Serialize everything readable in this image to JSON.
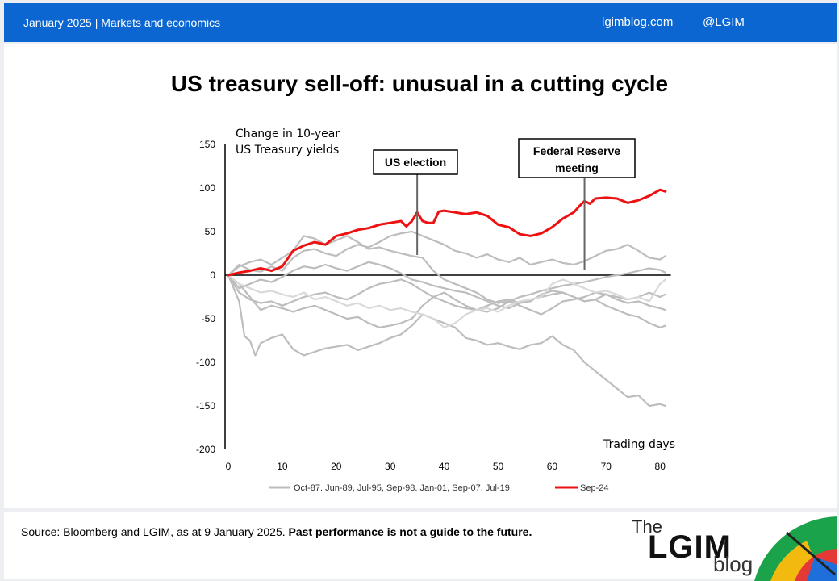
{
  "header": {
    "left": "January 2025 |  Markets and economics",
    "site": "lgimblog.com",
    "handle": "@LGIM"
  },
  "title": "US treasury sell-off: unusual in a cutting cycle",
  "source": {
    "text": "Source: Bloomberg and LGIM,  as at 9 January 2025. ",
    "bold": "Past performance is not a guide to the future."
  },
  "logo": {
    "the": "The",
    "main": "LGIM",
    "blog": "blog"
  },
  "colors": {
    "header": "#0b66d1",
    "highlight": "#ee1111",
    "history": "#bdbdbd",
    "history_light": "#d9d9d9"
  },
  "chart_data": {
    "type": "line",
    "title": "US treasury sell-off: unusual in a cutting cycle",
    "ylabel": [
      "Change in 10-year",
      "US Treasury yields"
    ],
    "xlabel": "Trading days",
    "xlim": [
      0,
      82
    ],
    "ylim": [
      -200,
      150
    ],
    "xticks": [
      0,
      10,
      20,
      30,
      40,
      50,
      60,
      70,
      80
    ],
    "yticks": [
      150,
      100,
      50,
      0,
      -50,
      -100,
      -150,
      -200
    ],
    "grid": false,
    "legend": {
      "placement": "bottom",
      "entries": [
        "Oct-87. Jun-89, Jul-95, Sep-98. Jan-01, Sep-07. Jul-19",
        "Sep-24"
      ]
    },
    "annotations": [
      {
        "text": "US election",
        "x": 35
      },
      {
        "text": "Federal Reserve meeting",
        "x": 66
      }
    ],
    "series": [
      {
        "name": "Sep-24",
        "color": "#ee1111",
        "width": 3,
        "x": [
          0,
          2,
          4,
          6,
          8,
          10,
          12,
          14,
          16,
          18,
          20,
          22,
          24,
          26,
          28,
          30,
          32,
          33,
          34,
          35,
          36,
          37,
          38,
          39,
          40,
          42,
          44,
          46,
          48,
          50,
          52,
          54,
          56,
          58,
          60,
          62,
          64,
          65,
          66,
          67,
          68,
          70,
          72,
          74,
          76,
          78,
          80,
          81
        ],
        "y": [
          0,
          3,
          5,
          8,
          5,
          10,
          28,
          34,
          38,
          35,
          45,
          48,
          52,
          54,
          58,
          60,
          62,
          56,
          62,
          72,
          62,
          60,
          60,
          73,
          74,
          72,
          70,
          72,
          68,
          58,
          55,
          47,
          45,
          48,
          55,
          65,
          72,
          79,
          85,
          82,
          88,
          89,
          88,
          83,
          86,
          91,
          98,
          96
        ]
      },
      {
        "color": "#bdbdbd",
        "width": 2.2,
        "x": [
          0,
          2,
          3,
          4,
          5,
          6,
          8,
          10,
          12,
          14,
          16,
          18,
          20,
          22,
          24,
          26,
          28,
          30,
          32,
          34,
          36,
          38,
          40,
          42,
          44,
          46,
          48,
          50,
          52,
          54,
          56,
          58,
          60,
          62,
          64,
          66,
          68,
          70,
          72,
          74,
          76,
          78,
          80,
          81
        ],
        "y": [
          0,
          -30,
          -70,
          -75,
          -92,
          -78,
          -72,
          -68,
          -85,
          -92,
          -88,
          -84,
          -82,
          -80,
          -86,
          -82,
          -78,
          -72,
          -68,
          -58,
          -45,
          -50,
          -55,
          -60,
          -72,
          -75,
          -80,
          -78,
          -82,
          -85,
          -80,
          -78,
          -70,
          -80,
          -86,
          -100,
          -110,
          -120,
          -130,
          -140,
          -138,
          -150,
          -148,
          -150
        ]
      },
      {
        "color": "#bdbdbd",
        "width": 2.2,
        "x": [
          0,
          2,
          4,
          6,
          8,
          10,
          12,
          14,
          16,
          18,
          20,
          22,
          24,
          26,
          28,
          30,
          32,
          34,
          36,
          38,
          40,
          42,
          44,
          46,
          48,
          50,
          52,
          54,
          56,
          58,
          60,
          62,
          64,
          66,
          68,
          70,
          72,
          74,
          76,
          78,
          80,
          81
        ],
        "y": [
          0,
          12,
          6,
          4,
          10,
          5,
          20,
          28,
          30,
          25,
          22,
          30,
          35,
          32,
          38,
          45,
          48,
          50,
          45,
          40,
          35,
          28,
          25,
          20,
          24,
          18,
          15,
          20,
          12,
          15,
          18,
          14,
          12,
          16,
          22,
          28,
          30,
          35,
          28,
          20,
          18,
          22
        ]
      },
      {
        "color": "#bdbdbd",
        "width": 2.2,
        "x": [
          0,
          2,
          4,
          6,
          8,
          10,
          12,
          14,
          16,
          18,
          20,
          22,
          24,
          26,
          28,
          30,
          32,
          34,
          36,
          38,
          40,
          42,
          44,
          46,
          48,
          50,
          52,
          54,
          56,
          58,
          60,
          62,
          64,
          66,
          68,
          70,
          72,
          74,
          76,
          78,
          80,
          81
        ],
        "y": [
          0,
          -20,
          -28,
          -32,
          -30,
          -35,
          -30,
          -25,
          -22,
          -20,
          -25,
          -28,
          -22,
          -15,
          -10,
          -8,
          -5,
          -10,
          -18,
          -25,
          -30,
          -35,
          -38,
          -40,
          -35,
          -30,
          -28,
          -32,
          -30,
          -22,
          -18,
          -20,
          -25,
          -30,
          -28,
          -35,
          -40,
          -45,
          -48,
          -55,
          -60,
          -58
        ]
      },
      {
        "color": "#bdbdbd",
        "width": 2.2,
        "x": [
          0,
          2,
          4,
          6,
          8,
          10,
          12,
          14,
          16,
          18,
          20,
          22,
          24,
          26,
          28,
          30,
          32,
          34,
          36,
          38,
          40,
          42,
          44,
          46,
          48,
          50,
          52,
          54,
          56,
          58,
          60,
          62,
          64,
          66,
          68,
          70,
          72,
          74,
          76,
          78,
          80,
          81
        ],
        "y": [
          0,
          -10,
          -25,
          -40,
          -35,
          -38,
          -42,
          -38,
          -35,
          -40,
          -45,
          -50,
          -48,
          -55,
          -60,
          -58,
          -55,
          -50,
          -35,
          -25,
          -20,
          -28,
          -35,
          -40,
          -42,
          -38,
          -30,
          -35,
          -40,
          -45,
          -38,
          -30,
          -28,
          -25,
          -20,
          -22,
          -28,
          -32,
          -30,
          -35,
          -38,
          -40
        ]
      },
      {
        "color": "#bdbdbd",
        "width": 2.2,
        "x": [
          0,
          2,
          4,
          6,
          8,
          10,
          12,
          14,
          16,
          18,
          20,
          22,
          24,
          26,
          28,
          30,
          32,
          34,
          36,
          38,
          40,
          42,
          44,
          46,
          48,
          50,
          52,
          54,
          56,
          58,
          60,
          62,
          64,
          66,
          68,
          70,
          72,
          74,
          76,
          78,
          80,
          81
        ],
        "y": [
          0,
          10,
          15,
          18,
          12,
          20,
          28,
          45,
          42,
          35,
          40,
          45,
          38,
          30,
          32,
          28,
          25,
          22,
          20,
          5,
          -5,
          -10,
          -15,
          -20,
          -28,
          -32,
          -30,
          -25,
          -22,
          -18,
          -15,
          -12,
          -10,
          -8,
          -5,
          -2,
          0,
          2,
          5,
          8,
          6,
          3
        ]
      },
      {
        "color": "#bdbdbd",
        "width": 2.2,
        "x": [
          0,
          2,
          4,
          6,
          8,
          10,
          12,
          14,
          16,
          18,
          20,
          22,
          24,
          26,
          28,
          30,
          32,
          34,
          36,
          38,
          40,
          42,
          44,
          46,
          48,
          50,
          52,
          54,
          56,
          58,
          60,
          62,
          64,
          66,
          68,
          70,
          72,
          74,
          76,
          78,
          80,
          81
        ],
        "y": [
          0,
          -15,
          -10,
          -5,
          -8,
          -2,
          5,
          10,
          8,
          12,
          8,
          5,
          10,
          15,
          12,
          8,
          2,
          -5,
          -8,
          -12,
          -15,
          -18,
          -20,
          -25,
          -30,
          -35,
          -38,
          -32,
          -28,
          -25,
          -22,
          -20,
          -25,
          -30,
          -28,
          -22,
          -25,
          -28,
          -25,
          -20,
          -25,
          -22
        ]
      },
      {
        "color": "#d9d9d9",
        "width": 2.2,
        "x": [
          0,
          2,
          4,
          6,
          8,
          10,
          12,
          14,
          16,
          18,
          20,
          22,
          24,
          26,
          28,
          30,
          32,
          34,
          36,
          38,
          40,
          42,
          44,
          46,
          48,
          50,
          52,
          54,
          56,
          58,
          60,
          62,
          64,
          66,
          68,
          70,
          72,
          74,
          76,
          78,
          80,
          81
        ],
        "y": [
          0,
          -10,
          -15,
          -20,
          -18,
          -22,
          -25,
          -20,
          -28,
          -25,
          -30,
          -35,
          -32,
          -38,
          -35,
          -40,
          -38,
          -42,
          -45,
          -50,
          -60,
          -55,
          -45,
          -40,
          -38,
          -42,
          -35,
          -30,
          -28,
          -25,
          -10,
          -5,
          -10,
          -15,
          -20,
          -18,
          -22,
          -28,
          -25,
          -30,
          -10,
          -5
        ]
      }
    ]
  }
}
